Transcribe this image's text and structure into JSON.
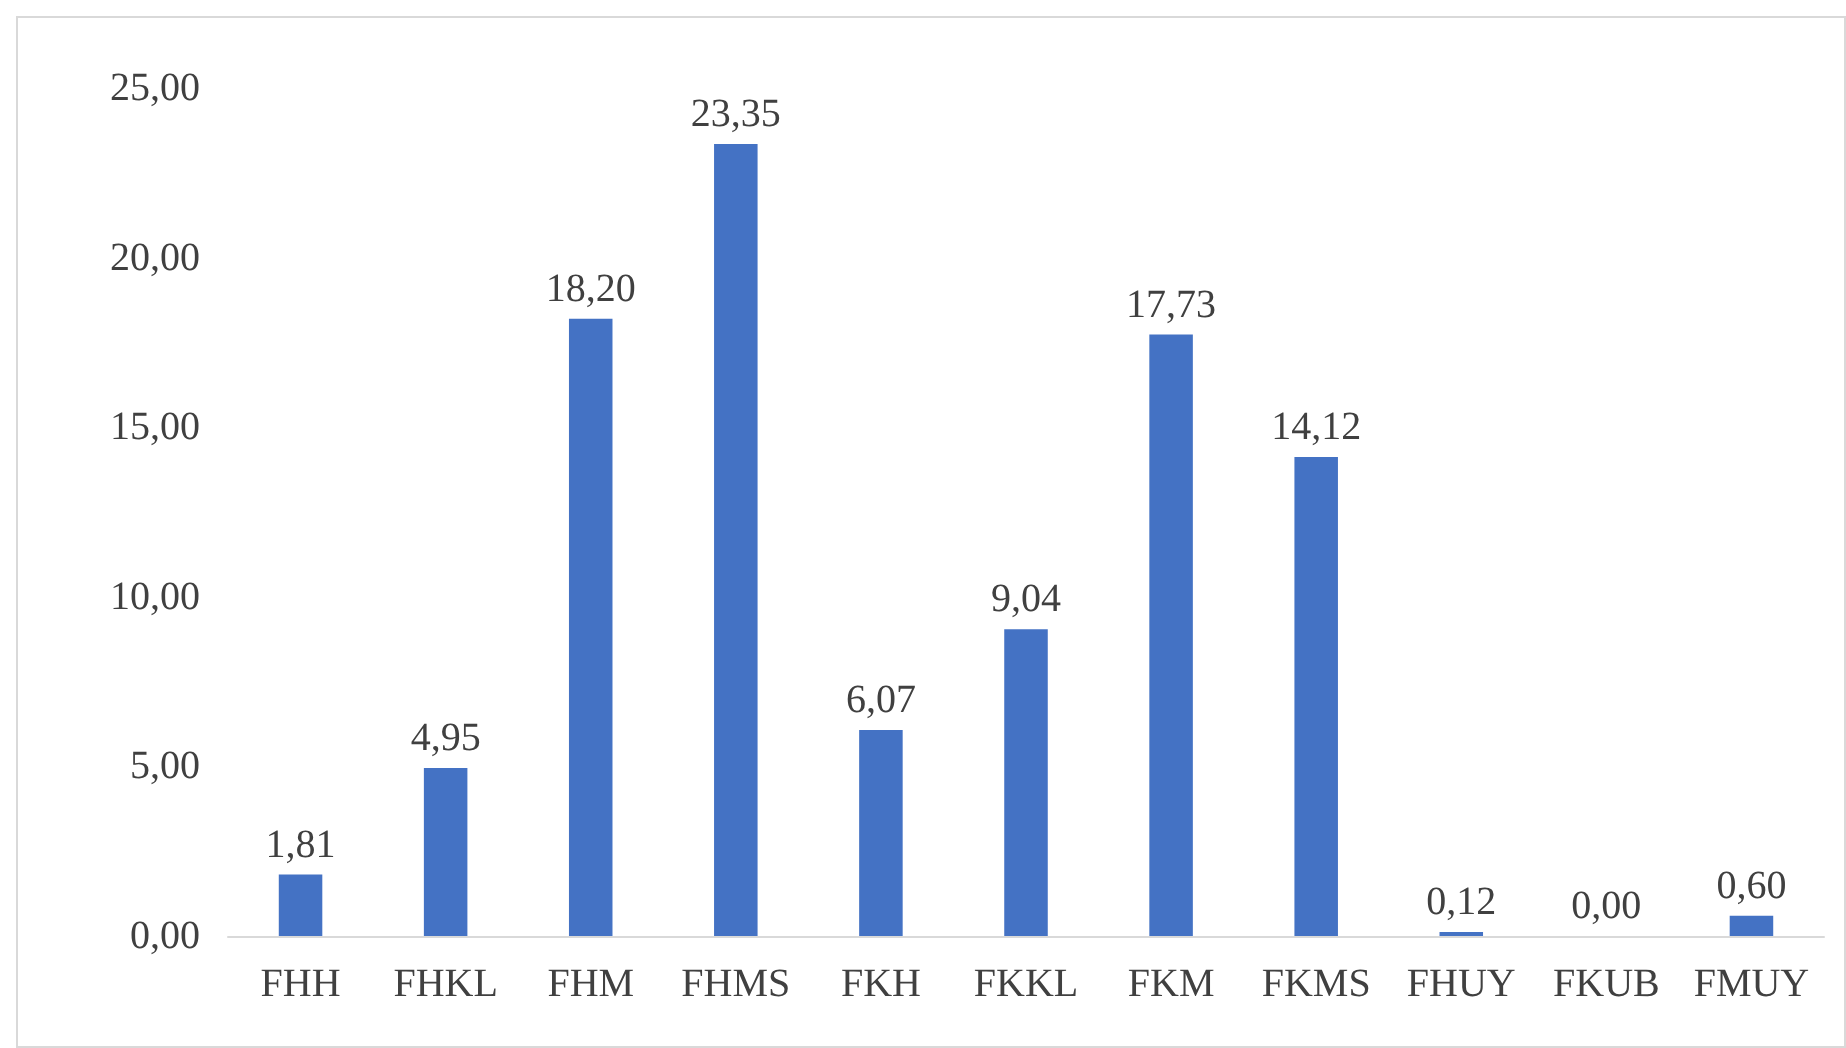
{
  "chart_data": {
    "type": "bar",
    "categories": [
      "FHH",
      "FHKL",
      "FHM",
      "FHMS",
      "FKH",
      "FKKL",
      "FKM",
      "FKMS",
      "FHUY",
      "FKUB",
      "FMUY"
    ],
    "values": [
      1.81,
      4.95,
      18.2,
      23.35,
      6.07,
      9.04,
      17.73,
      14.12,
      0.12,
      0,
      0.6
    ],
    "value_labels": [
      "1,81",
      "4,95",
      "18,20",
      "23,35",
      "6,07",
      "9,04",
      "17,73",
      "14,12",
      "0,12",
      "0,00",
      "0,60"
    ],
    "color": "#4472c4",
    "ylim": [
      0,
      25
    ],
    "yticks": [
      {
        "value": 0,
        "label": "0,00"
      },
      {
        "value": 5,
        "label": "5,00"
      },
      {
        "value": 10,
        "label": "10,00"
      },
      {
        "value": 15,
        "label": "15,00"
      },
      {
        "value": 20,
        "label": "20,00"
      },
      {
        "value": 25,
        "label": "25,00"
      }
    ],
    "grid": false
  }
}
